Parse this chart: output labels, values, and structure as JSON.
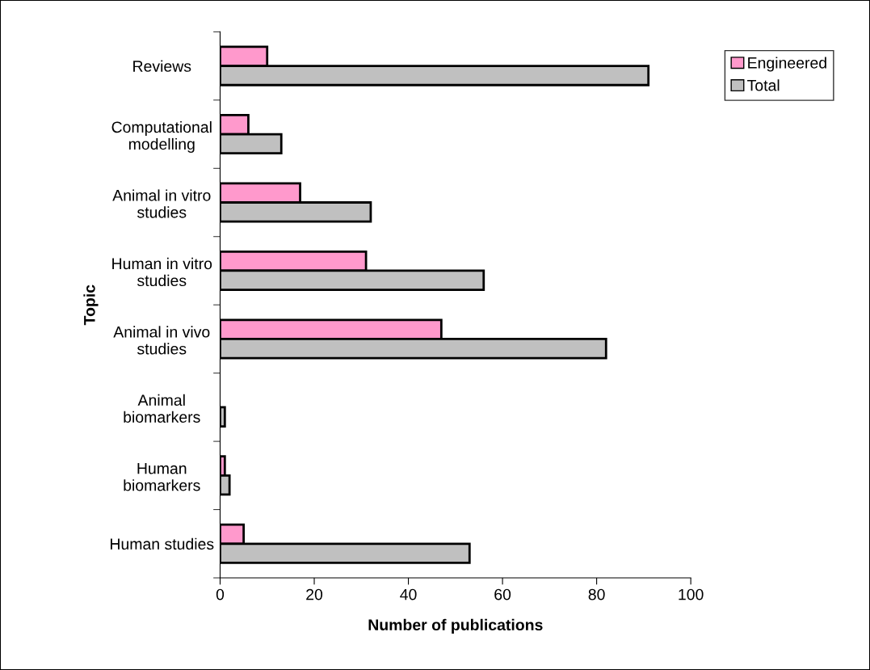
{
  "chart_data": {
    "type": "bar",
    "orientation": "horizontal",
    "xlabel": "Number of publications",
    "ylabel": "Topic",
    "categories": [
      "Reviews",
      "Computational\nmodelling",
      "Animal in vitro\nstudies",
      "Human in vitro\nstudies",
      "Animal in vivo\nstudies",
      "Animal\nbiomarkers",
      "Human\nbiomarkers",
      "Human studies"
    ],
    "series": [
      {
        "name": "Engineered",
        "color": "#ff99cc",
        "values": [
          10,
          6,
          17,
          31,
          47,
          0,
          1,
          5
        ]
      },
      {
        "name": "Total",
        "color": "#c0c0c0",
        "values": [
          91,
          13,
          32,
          56,
          82,
          1,
          2,
          53
        ]
      }
    ],
    "xlim": [
      0,
      100
    ],
    "xticks": [
      0,
      20,
      40,
      60,
      80,
      100
    ],
    "grid": false,
    "legend": "top right"
  }
}
